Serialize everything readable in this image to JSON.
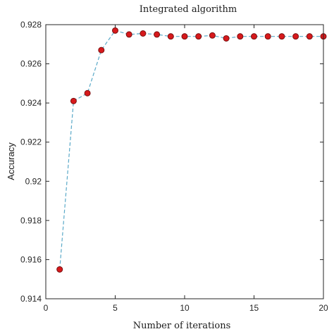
{
  "chart_data": {
    "type": "line",
    "title": "Integrated algorithm",
    "xlabel": "Number of iterations",
    "ylabel": "Accuracy",
    "xlim": [
      0,
      20
    ],
    "ylim": [
      0.914,
      0.928
    ],
    "xticks": [
      0,
      5,
      10,
      15,
      20
    ],
    "xtick_labels": [
      "0",
      "5",
      "10",
      "15",
      "20"
    ],
    "yticks": [
      0.914,
      0.916,
      0.918,
      0.92,
      0.922,
      0.924,
      0.926,
      0.928
    ],
    "ytick_labels": [
      "0.914",
      "0.916",
      "0.918",
      "0.92",
      "0.922",
      "0.924",
      "0.926",
      "0.928"
    ],
    "grid": false,
    "line_style": "dashed",
    "line_color": "#5aa9c8",
    "marker": "circle",
    "marker_fill": "#d7191c",
    "marker_edge": "#7a1010",
    "x": [
      1,
      2,
      3,
      4,
      5,
      6,
      7,
      8,
      9,
      10,
      11,
      12,
      13,
      14,
      15,
      16,
      17,
      18,
      19,
      20
    ],
    "values": [
      0.9155,
      0.9241,
      0.9245,
      0.9267,
      0.9277,
      0.9275,
      0.92755,
      0.9275,
      0.9274,
      0.9274,
      0.9274,
      0.92745,
      0.9273,
      0.9274,
      0.9274,
      0.9274,
      0.9274,
      0.9274,
      0.9274,
      0.9274
    ]
  }
}
